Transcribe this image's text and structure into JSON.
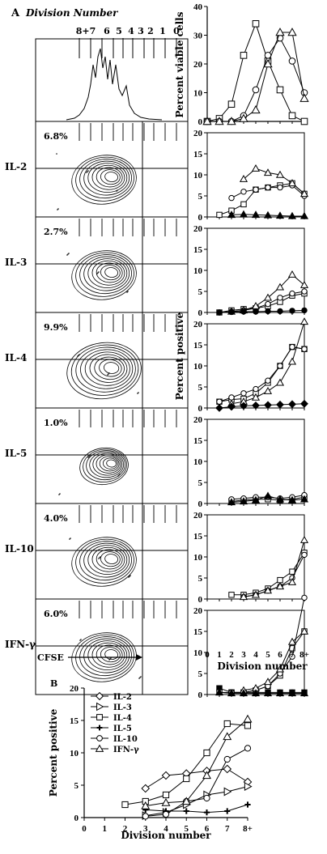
{
  "panel_a": {
    "label": "A",
    "title": "Division Number",
    "division_labels": [
      "8+7",
      "6",
      "5",
      "4",
      "3",
      "2",
      "1",
      "0"
    ],
    "cfse_label": "CFSE",
    "rows": [
      {
        "cytokine": "IL-2",
        "percent": "6.8%"
      },
      {
        "cytokine": "IL-3",
        "percent": "2.7%"
      },
      {
        "cytokine": "IL-4",
        "percent": "9.9%"
      },
      {
        "cytokine": "IL-5",
        "percent": "1.0%"
      },
      {
        "cytokine": "IL-10",
        "percent": "4.0%"
      },
      {
        "cytokine": "IFN-γ",
        "percent": "6.0%"
      }
    ]
  },
  "panel_b": {
    "label": "B"
  },
  "chart_data": [
    {
      "type": "line",
      "ylabel": "Percent viable cells",
      "ylim": [
        0,
        40
      ],
      "yticks": [
        0,
        10,
        20,
        30,
        40
      ],
      "x": [
        0,
        1,
        2,
        3,
        4,
        5,
        6,
        7,
        8
      ],
      "series": [
        {
          "marker": "square",
          "values": [
            0,
            1,
            6,
            23,
            34,
            21,
            11,
            2,
            0
          ]
        },
        {
          "marker": "circle",
          "values": [
            0,
            0,
            0,
            2,
            11,
            23,
            29,
            21,
            10
          ]
        },
        {
          "marker": "triangle",
          "values": [
            0,
            0,
            0,
            1,
            4,
            20,
            31,
            31,
            8
          ]
        }
      ]
    },
    {
      "type": "line",
      "ylim": [
        0,
        20
      ],
      "yticks": [
        0,
        5,
        10,
        15,
        20
      ],
      "x": [
        0,
        1,
        2,
        3,
        4,
        5,
        6,
        7,
        8
      ],
      "series": [
        {
          "marker": "square",
          "values": [
            null,
            0.5,
            1.5,
            3,
            6.5,
            7,
            7.5,
            8,
            5.5
          ]
        },
        {
          "marker": "circle",
          "values": [
            null,
            null,
            4.5,
            6,
            6.5,
            7,
            7,
            7.5,
            5
          ]
        },
        {
          "marker": "triangle",
          "values": [
            null,
            null,
            null,
            9,
            11.5,
            10.5,
            10,
            8,
            5.5
          ]
        },
        {
          "marker": "filled-triangle",
          "values": [
            null,
            null,
            0.5,
            0.6,
            0.5,
            0.4,
            0.3,
            0.2,
            0.2
          ]
        }
      ]
    },
    {
      "type": "line",
      "ylim": [
        0,
        20
      ],
      "yticks": [
        0,
        5,
        10,
        15,
        20
      ],
      "x": [
        0,
        1,
        2,
        3,
        4,
        5,
        6,
        7,
        8
      ],
      "series": [
        {
          "marker": "square",
          "values": [
            null,
            0,
            0.5,
            0.8,
            1,
            1.5,
            2.5,
            4,
            4.5
          ]
        },
        {
          "marker": "circle",
          "values": [
            null,
            0,
            0.2,
            0.5,
            1,
            2,
            3.5,
            4.5,
            5
          ]
        },
        {
          "marker": "triangle",
          "values": [
            null,
            null,
            0.2,
            0.5,
            1.5,
            3.5,
            6,
            9,
            6.5
          ]
        },
        {
          "marker": "filled-circle",
          "values": [
            null,
            0,
            0.1,
            0.2,
            0.2,
            0.3,
            0.3,
            0.4,
            0.5
          ]
        }
      ]
    },
    {
      "type": "line",
      "ylim": [
        0,
        20
      ],
      "yticks": [
        0,
        5,
        10,
        15,
        20
      ],
      "x": [
        0,
        1,
        2,
        3,
        4,
        5,
        6,
        7,
        8
      ],
      "series": [
        {
          "marker": "square",
          "values": [
            null,
            1.5,
            2,
            2.2,
            3.5,
            6,
            10,
            14.5,
            14
          ]
        },
        {
          "marker": "circle",
          "values": [
            null,
            1.5,
            2.5,
            3.5,
            4.5,
            6.5,
            10,
            14.5,
            14
          ]
        },
        {
          "marker": "triangle",
          "values": [
            null,
            null,
            1,
            1.5,
            2.5,
            4,
            6,
            11,
            20.5
          ]
        },
        {
          "marker": "filled-diamond",
          "values": [
            null,
            0,
            0.3,
            0.5,
            0.6,
            0.7,
            0.8,
            0.9,
            1
          ]
        }
      ]
    },
    {
      "type": "line",
      "ylim": [
        0,
        20
      ],
      "yticks": [
        0,
        5,
        10,
        15,
        20
      ],
      "x": [
        0,
        1,
        2,
        3,
        4,
        5,
        6,
        7,
        8
      ],
      "series": [
        {
          "marker": "square",
          "values": [
            null,
            null,
            0.5,
            0.8,
            1,
            1,
            0.8,
            1,
            1.5
          ]
        },
        {
          "marker": "circle",
          "values": [
            null,
            null,
            1,
            1.2,
            1.5,
            1.5,
            1.2,
            1.5,
            2
          ]
        },
        {
          "marker": "filled-triangle",
          "values": [
            null,
            null,
            0.3,
            0.5,
            0.8,
            1.8,
            1,
            0.8,
            1
          ]
        }
      ]
    },
    {
      "type": "line",
      "ylim": [
        0,
        20
      ],
      "yticks": [
        0,
        5,
        10,
        15,
        20
      ],
      "x": [
        0,
        1,
        2,
        3,
        4,
        5,
        6,
        7,
        8
      ],
      "series": [
        {
          "marker": "square",
          "values": [
            null,
            null,
            1,
            1,
            1.5,
            2.5,
            4.5,
            6.5,
            11
          ]
        },
        {
          "marker": "circle",
          "values": [
            null,
            null,
            null,
            0.5,
            1,
            2,
            3,
            5,
            10.5
          ]
        },
        {
          "marker": "triangle",
          "values": [
            null,
            null,
            null,
            0.5,
            1,
            2,
            3,
            4,
            14
          ]
        }
      ]
    },
    {
      "type": "line",
      "ylim": [
        0,
        20
      ],
      "yticks": [
        0,
        5,
        10,
        15,
        20
      ],
      "x": [
        0,
        1,
        2,
        3,
        4,
        5,
        6,
        7,
        8
      ],
      "series": [
        {
          "marker": "filled-square",
          "values": [
            null,
            1.5,
            0.5,
            0.5,
            0.5,
            0.5,
            0.5,
            0.5,
            0.5
          ]
        },
        {
          "marker": "square",
          "values": [
            null,
            0.5,
            0.5,
            0.5,
            1,
            2,
            4.5,
            11,
            15
          ]
        },
        {
          "marker": "circle",
          "values": [
            null,
            null,
            0.5,
            0.5,
            1,
            2,
            5,
            9,
            23
          ]
        },
        {
          "marker": "triangle",
          "values": [
            null,
            null,
            null,
            1,
            1.5,
            3,
            6,
            12.5,
            15
          ]
        },
        {
          "marker": "filled-triangle",
          "values": [
            null,
            0.5,
            0.3,
            0.3,
            0.3,
            0.3,
            0.3,
            0.3,
            0.3
          ]
        }
      ]
    },
    {
      "type": "line",
      "ylabel": "Percent positive",
      "xlabel": "Division number",
      "ylim": [
        0,
        20
      ],
      "yticks": [
        0,
        5,
        10,
        15,
        20
      ],
      "xticks": [
        "0",
        "1",
        "2",
        "3",
        "4",
        "5",
        "6",
        "7",
        "8+"
      ],
      "legend": "top-left",
      "series": [
        {
          "name": "IL-2",
          "marker": "diamond",
          "x": [
            3,
            4,
            5,
            6,
            7,
            8
          ],
          "values": [
            4.5,
            6.5,
            6.8,
            7.2,
            7.5,
            5.5
          ]
        },
        {
          "name": "IL-3",
          "marker": "right-triangle",
          "x": [
            3,
            4,
            5,
            6,
            7,
            8
          ],
          "values": [
            0.3,
            0.8,
            2,
            3.5,
            4,
            4.8
          ]
        },
        {
          "name": "IL-4",
          "marker": "square",
          "x": [
            2,
            3,
            4,
            5,
            6,
            7,
            8
          ],
          "values": [
            2,
            2.5,
            3.5,
            6,
            10,
            14.5,
            14.2
          ]
        },
        {
          "name": "IL-5",
          "marker": "cross",
          "x": [
            3,
            4,
            5,
            6,
            7,
            8
          ],
          "values": [
            1.2,
            1,
            1,
            0.8,
            1,
            2
          ]
        },
        {
          "name": "IL-10",
          "marker": "circle",
          "x": [
            3,
            4,
            5,
            6,
            7,
            8
          ],
          "values": [
            0.2,
            0.5,
            2.5,
            3,
            9,
            10.7
          ]
        },
        {
          "name": "IFN-γ",
          "marker": "triangle",
          "x": [
            3,
            4,
            5,
            6,
            7,
            8
          ],
          "values": [
            1.8,
            2.3,
            2.5,
            6.5,
            12.5,
            15.2
          ]
        }
      ]
    }
  ]
}
